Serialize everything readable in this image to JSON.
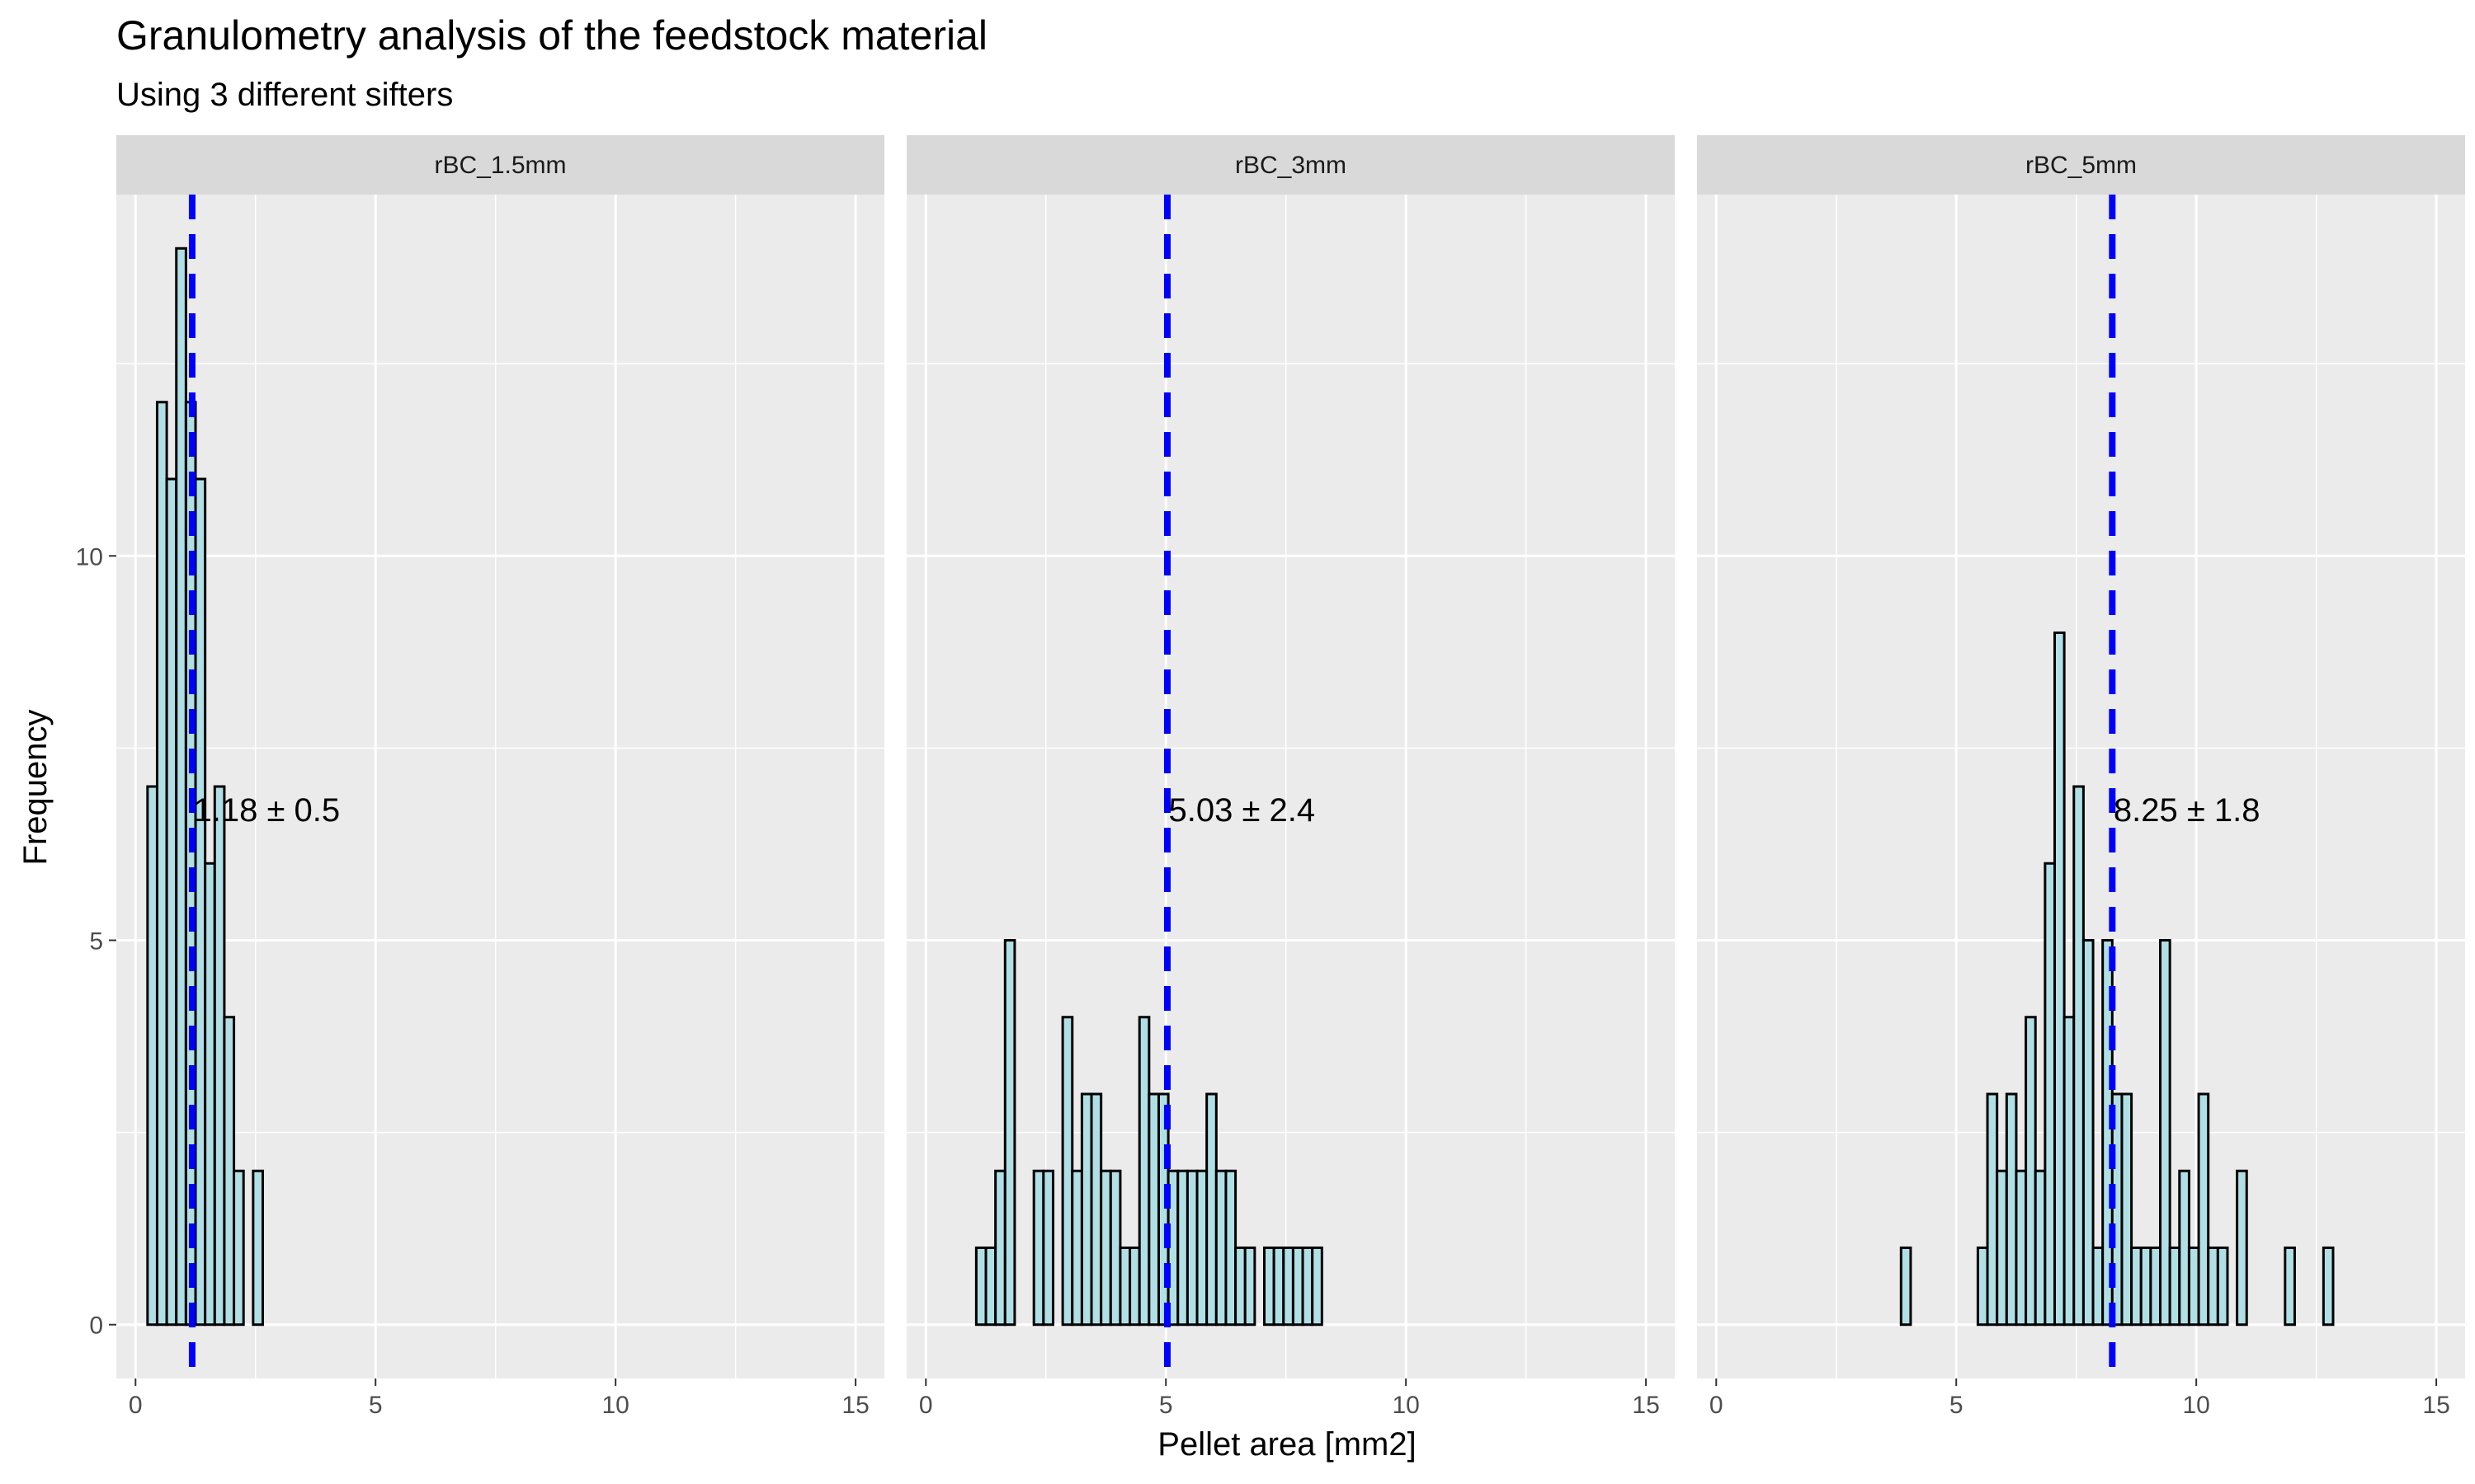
{
  "chart_data": {
    "type": "bar",
    "title": "Granulometry analysis of the feedstock material",
    "subtitle": "Using 3 different sifters",
    "xlabel": "Pellet area  [mm2]",
    "ylabel": "Frequency",
    "xlim": [
      -0.4,
      15.6
    ],
    "ylim": [
      -0.7,
      14.7
    ],
    "x_ticks": [
      0,
      5,
      10,
      15
    ],
    "y_ticks": [
      0,
      5,
      10
    ],
    "grid": true,
    "legend": "none",
    "colors": {
      "panel_bg": "#ebebeb",
      "grid": "#ffffff",
      "strip_bg": "#d9d9d9",
      "bar_fill": "#b0e0e6",
      "bar_stroke": "#000000",
      "mean_line": "#0000ff"
    },
    "bin_start": 0.25,
    "bin_width": 0.2,
    "panels": [
      {
        "label": "rBC_1.5mm",
        "mean": 1.18,
        "annotation": "1.18 ± 0.5",
        "counts": [
          7,
          12,
          11,
          14,
          12,
          11,
          6,
          7,
          4,
          2,
          0,
          2,
          0,
          0,
          0,
          0,
          0,
          0,
          0,
          0,
          0,
          0,
          0,
          0,
          0,
          0,
          0,
          0,
          0,
          0,
          0,
          0,
          0,
          0,
          0,
          0,
          0,
          0,
          0,
          0,
          0,
          0,
          0,
          0,
          0,
          0,
          0,
          0,
          0,
          0,
          0,
          0,
          0,
          0,
          0,
          0,
          0,
          0,
          0,
          0,
          0,
          0,
          0,
          0,
          0,
          0,
          0,
          0,
          0,
          0,
          0,
          0,
          0,
          0
        ]
      },
      {
        "label": "rBC_3mm",
        "mean": 5.03,
        "annotation": "5.03 ± 2.4",
        "counts": [
          0,
          0,
          0,
          0,
          1,
          1,
          2,
          5,
          0,
          0,
          2,
          2,
          0,
          4,
          2,
          3,
          3,
          2,
          2,
          1,
          1,
          4,
          3,
          3,
          2,
          2,
          2,
          2,
          3,
          2,
          2,
          1,
          1,
          0,
          1,
          1,
          1,
          1,
          1,
          1,
          0,
          0,
          0,
          0,
          0,
          0,
          0,
          0,
          0,
          0,
          0,
          0,
          0,
          0,
          0,
          0,
          0,
          0,
          0,
          0,
          0,
          0,
          0,
          0,
          0,
          0,
          0,
          0,
          0,
          0,
          0,
          0,
          0,
          0
        ]
      },
      {
        "label": "rBC_5mm",
        "mean": 8.25,
        "annotation": "8.25 ± 1.8",
        "counts": [
          0,
          0,
          0,
          0,
          0,
          0,
          0,
          0,
          0,
          0,
          0,
          0,
          0,
          0,
          0,
          0,
          0,
          0,
          1,
          0,
          0,
          0,
          0,
          0,
          0,
          0,
          1,
          3,
          2,
          3,
          2,
          4,
          2,
          6,
          9,
          4,
          7,
          5,
          1,
          5,
          3,
          3,
          1,
          1,
          1,
          5,
          1,
          2,
          1,
          3,
          1,
          1,
          0,
          2,
          0,
          0,
          0,
          0,
          1,
          0,
          0,
          0,
          1,
          0,
          0,
          0,
          0,
          0,
          0,
          0,
          0,
          0,
          0,
          0
        ]
      }
    ]
  }
}
